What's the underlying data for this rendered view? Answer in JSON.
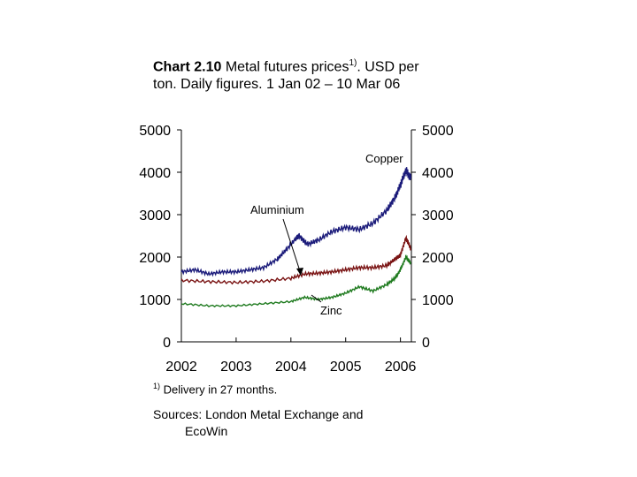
{
  "header": {
    "chart_num": "Chart 2.10",
    "title_main": "Metal futures prices",
    "title_sup": "1)",
    "title_rest": ". USD per ton. Daily figures. 1 Jan 02 – 10 Mar 06"
  },
  "footnote": {
    "marker": "1)",
    "text": "Delivery in 27 months."
  },
  "sources": {
    "line1": "Sources: London Metal Exchange and",
    "line2": "EcoWin"
  },
  "colors": {
    "copper": "#1b1b7a",
    "aluminium": "#7a1414",
    "zinc": "#1e7a1e",
    "axis": "#000000"
  },
  "chart_data": {
    "type": "line",
    "title": "Metal futures prices. USD per ton. Daily figures. 1 Jan 02 – 10 Mar 06",
    "x_ticks": [
      "2002",
      "2003",
      "2004",
      "2005",
      "2006"
    ],
    "y_ticks": [
      "0",
      "1000",
      "2000",
      "3000",
      "4000",
      "5000"
    ],
    "ylim": [
      0,
      5000
    ],
    "xlim": [
      2002.0,
      2006.2
    ],
    "grid": false,
    "series": [
      {
        "name": "Copper",
        "x": [
          2002.0,
          2002.25,
          2002.5,
          2002.75,
          2003.0,
          2003.25,
          2003.5,
          2003.75,
          2003.9,
          2004.1,
          2004.15,
          2004.3,
          2004.5,
          2004.75,
          2005.0,
          2005.25,
          2005.5,
          2005.75,
          2005.9,
          2006.0,
          2006.1,
          2006.19
        ],
        "values": [
          1650,
          1700,
          1600,
          1650,
          1650,
          1700,
          1750,
          1950,
          2150,
          2450,
          2500,
          2300,
          2400,
          2600,
          2700,
          2650,
          2800,
          3100,
          3400,
          3700,
          4050,
          3850
        ]
      },
      {
        "name": "Aluminium",
        "x": [
          2002.0,
          2002.5,
          2003.0,
          2003.5,
          2004.0,
          2004.25,
          2004.5,
          2004.75,
          2005.0,
          2005.25,
          2005.5,
          2005.75,
          2005.9,
          2006.0,
          2006.1,
          2006.19
        ],
        "values": [
          1450,
          1420,
          1400,
          1430,
          1500,
          1600,
          1620,
          1650,
          1700,
          1750,
          1750,
          1800,
          1950,
          2050,
          2450,
          2200
        ]
      },
      {
        "name": "Zinc",
        "x": [
          2002.0,
          2002.5,
          2003.0,
          2003.5,
          2004.0,
          2004.25,
          2004.5,
          2004.75,
          2005.0,
          2005.25,
          2005.5,
          2005.75,
          2005.9,
          2006.0,
          2006.1,
          2006.19
        ],
        "values": [
          900,
          850,
          850,
          900,
          950,
          1050,
          1000,
          1050,
          1150,
          1300,
          1200,
          1350,
          1500,
          1700,
          2000,
          1850
        ]
      }
    ],
    "annotations": [
      "Copper",
      "Aluminium",
      "Zinc"
    ]
  }
}
